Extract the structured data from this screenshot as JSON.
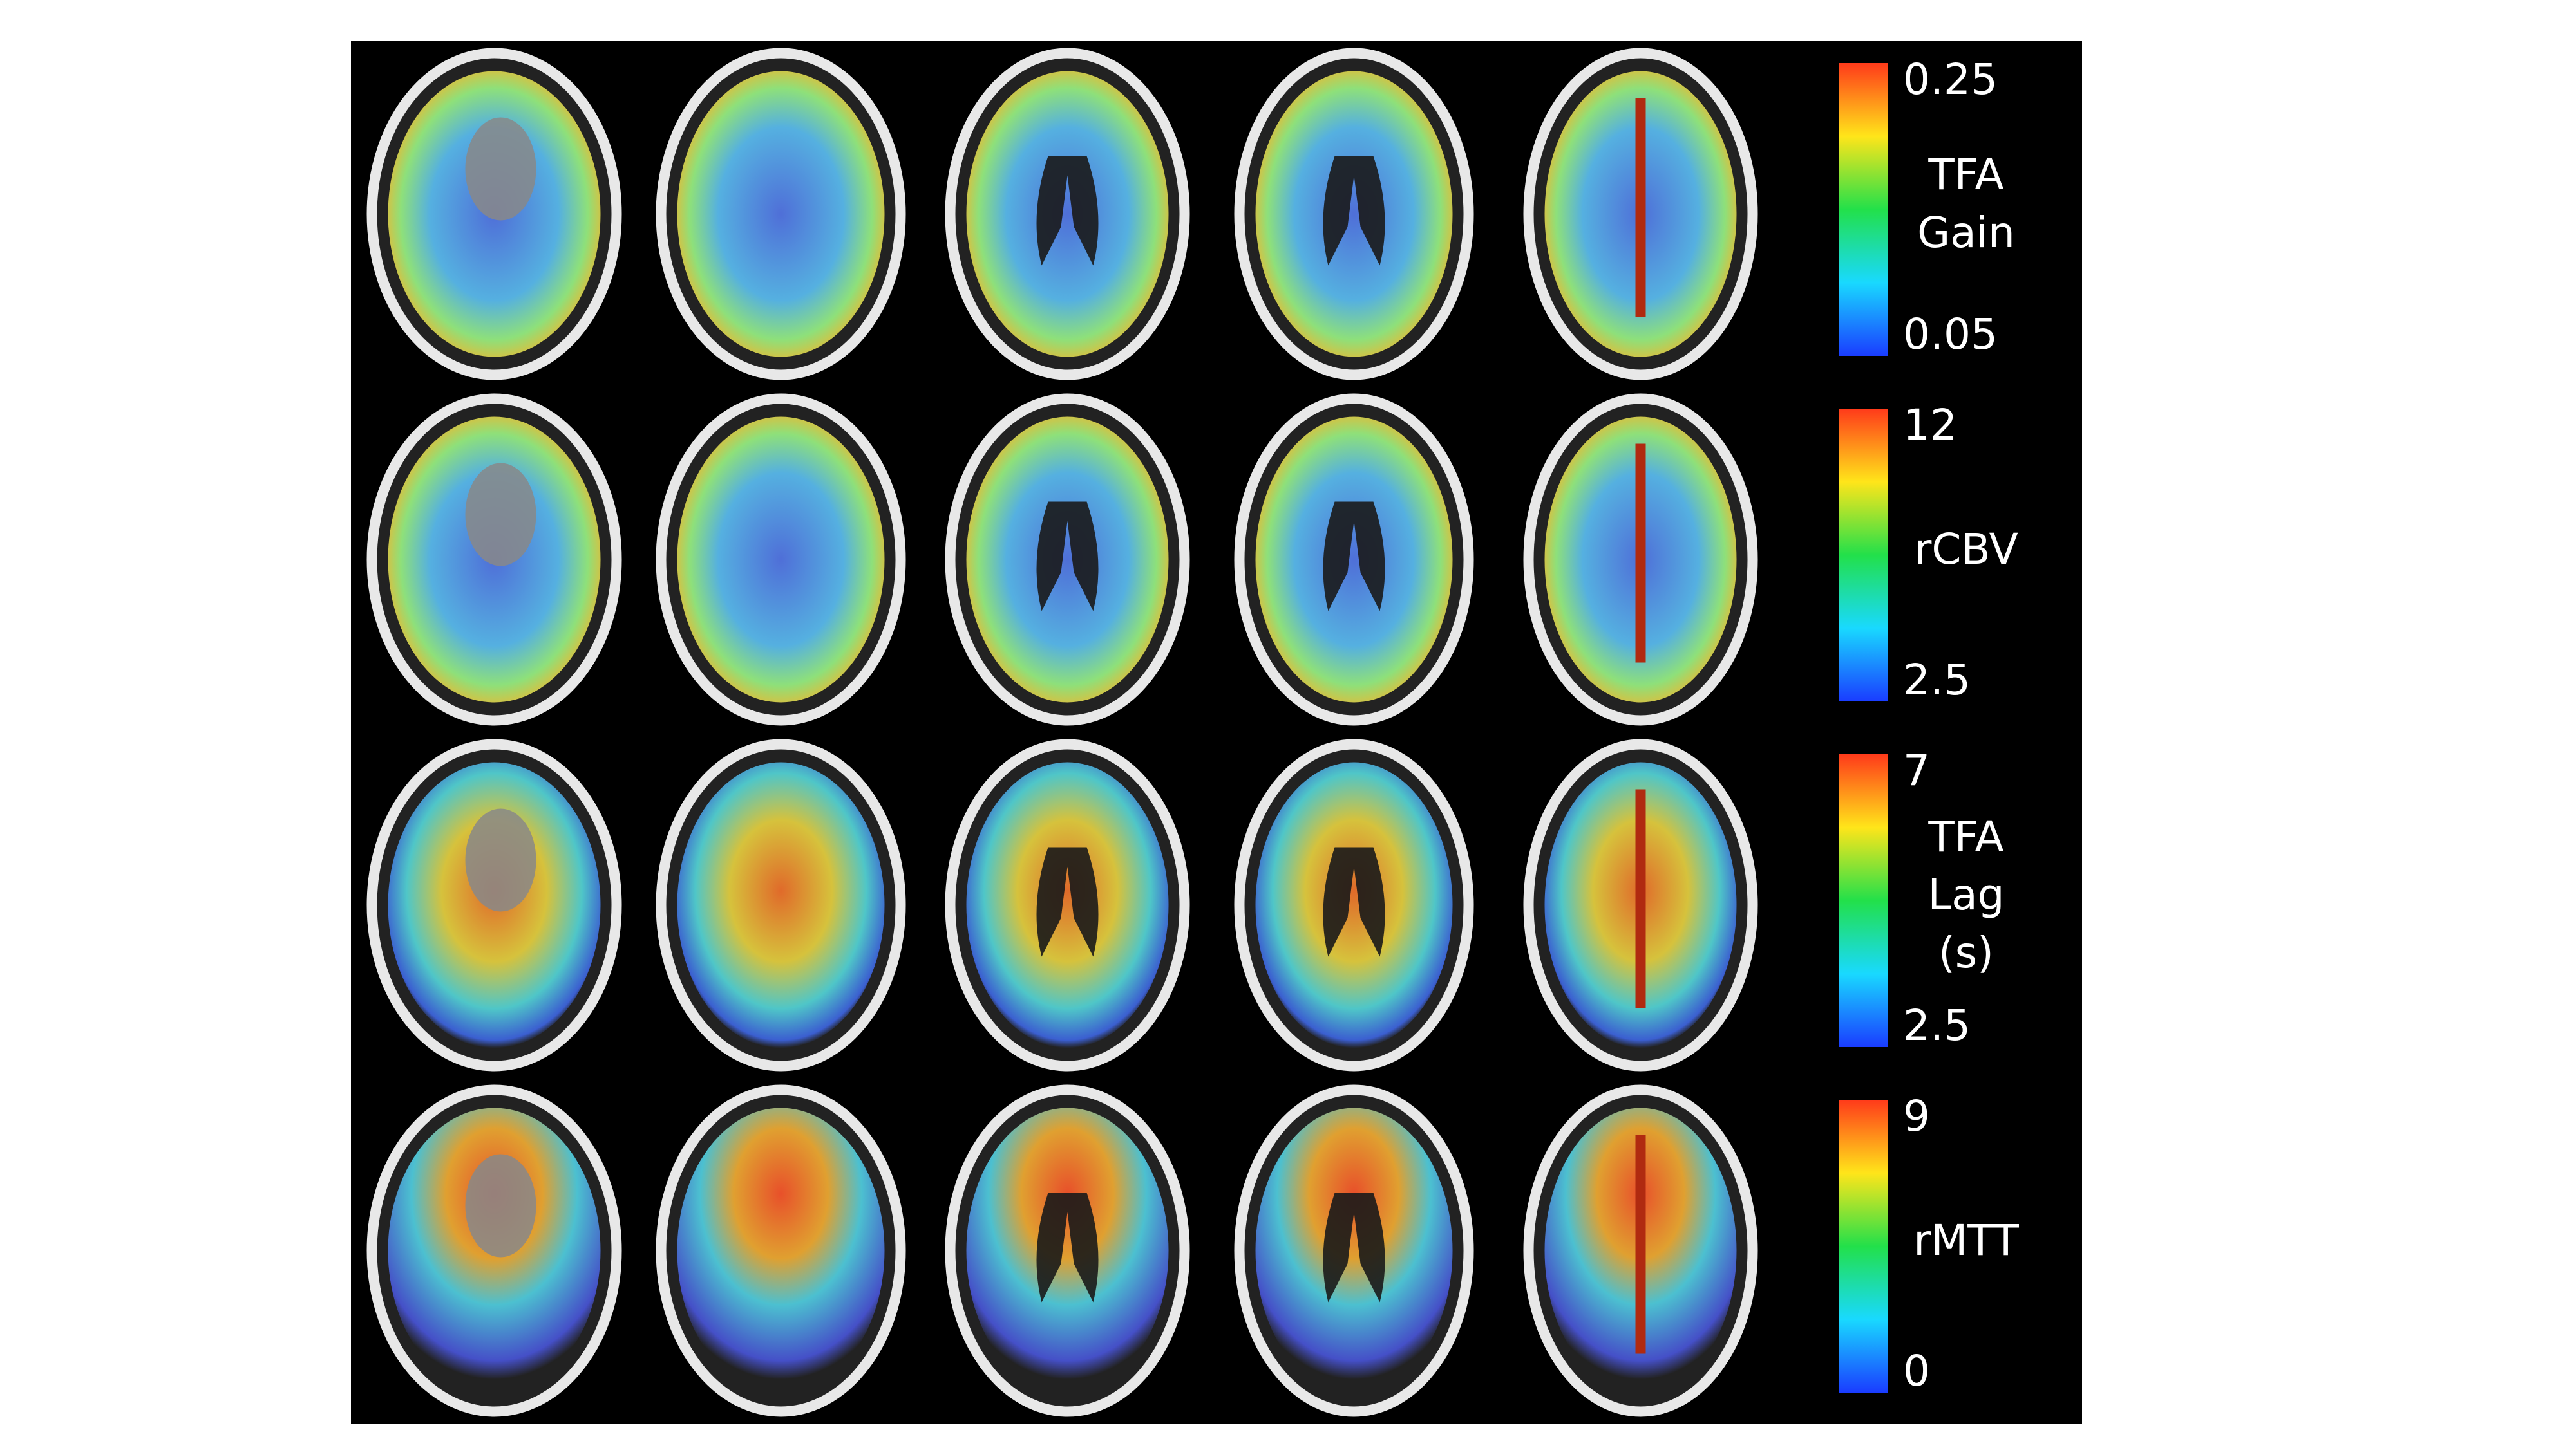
{
  "colorbars": [
    {
      "max": 0.25,
      "label": [
        "TFA",
        "Gain"
      ],
      "min": 0.05
    },
    {
      "max": 12,
      "label": [
        "rCBV"
      ],
      "min": 2.5
    },
    {
      "max": 7,
      "label": [
        "TFA",
        "Lag",
        "(s)"
      ],
      "min": 2.5
    },
    {
      "max": 9,
      "label": [
        "rMTT"
      ],
      "min": 0
    }
  ]
}
